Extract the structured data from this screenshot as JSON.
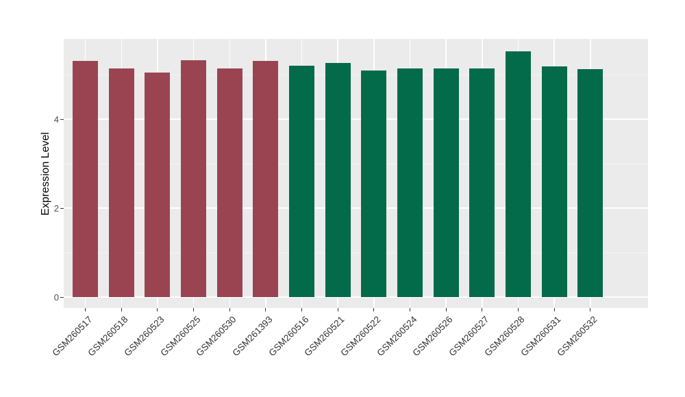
{
  "chart_data": {
    "type": "bar",
    "title": "",
    "xlabel": "",
    "ylabel": "Expression Level",
    "y_ticks": [
      0,
      2,
      4
    ],
    "y_minor_gridlines": [
      1,
      3,
      5
    ],
    "ylim": [
      -0.25,
      5.8
    ],
    "legend": "none",
    "grid": "on",
    "categories": [
      "GSM260517",
      "GSM260518",
      "GSM260523",
      "GSM260525",
      "GSM260530",
      "GSM261393",
      "GSM260516",
      "GSM260521",
      "GSM260522",
      "GSM260524",
      "GSM260526",
      "GSM260527",
      "GSM260528",
      "GSM260531",
      "GSM260532"
    ],
    "values": [
      5.31,
      5.14,
      5.04,
      5.32,
      5.14,
      5.31,
      5.2,
      5.26,
      5.1,
      5.14,
      5.14,
      5.14,
      5.53,
      5.19,
      5.13
    ],
    "bar_groups": [
      "A",
      "A",
      "A",
      "A",
      "A",
      "A",
      "B",
      "B",
      "B",
      "B",
      "B",
      "B",
      "B",
      "B",
      "B"
    ],
    "group_colors": {
      "A": "#9B4451",
      "B": "#046B4A"
    },
    "panel_background": "#EBEBEB",
    "major_gridline_color": "#FFFFFF",
    "minor_gridline_color": "#F5F5F5",
    "axis_text_color": "#4d4d4d",
    "tick_mark_color": "#333333"
  }
}
